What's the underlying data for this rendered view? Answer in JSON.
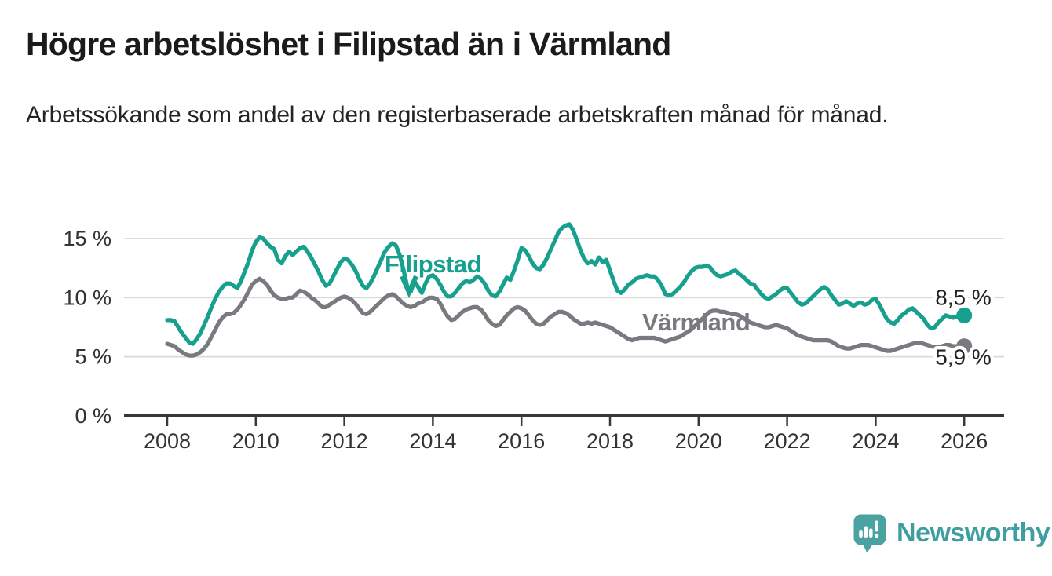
{
  "title": "Högre arbetslöshet i Filipstad än i Värmland",
  "subtitle": "Arbetssökande som andel av den registerbaserade arbetskraften månad för månad.",
  "branding": {
    "logo_text": "Newsworthy",
    "logo_color": "#3f9fa0",
    "logo_icon": "speech-bubble-bar-chart-icon"
  },
  "colors": {
    "filipstad": "#17a08e",
    "varmland": "#797980",
    "grid": "#d9d9d9",
    "axis": "#383838",
    "tick_text": "#333333",
    "value_label_text": "#222222",
    "background": "#ffffff"
  },
  "chart_data": {
    "type": "line",
    "title": "Högre arbetslöshet i Filipstad än i Värmland",
    "subtitle": "Arbetssökande som andel av den registerbaserade arbetskraften månad för månad.",
    "unit": "%",
    "frequency": "monthly",
    "x_start": "2008-01",
    "x_end": "2026-01",
    "x_tick_years": [
      2008,
      2010,
      2012,
      2014,
      2016,
      2018,
      2020,
      2022,
      2024,
      2026
    ],
    "y_ticks": [
      0,
      5,
      10,
      15
    ],
    "y_tick_labels": [
      "0 %",
      "5 %",
      "10 %",
      "15 %"
    ],
    "ylim": [
      0,
      17
    ],
    "grid": true,
    "legend": "inline-labels",
    "annotations": [
      {
        "text": "Filipstad",
        "series": "Filipstad",
        "arrow": true
      },
      {
        "text": "Värmland",
        "series": "Värmland",
        "arrow": false
      }
    ],
    "series": [
      {
        "name": "Filipstad",
        "color": "#17a08e",
        "end_value": 8.5,
        "end_label": "8,5 %",
        "values": [
          8.1,
          8.1,
          8.0,
          7.5,
          7.0,
          6.6,
          6.2,
          6.1,
          6.5,
          7.0,
          7.7,
          8.4,
          9.2,
          9.9,
          10.5,
          10.9,
          11.2,
          11.2,
          11.0,
          10.8,
          11.4,
          12.2,
          13.0,
          14.0,
          14.7,
          15.1,
          15.0,
          14.6,
          14.3,
          14.1,
          13.2,
          12.9,
          13.5,
          13.9,
          13.6,
          13.9,
          14.2,
          14.3,
          13.9,
          13.4,
          12.8,
          12.2,
          11.5,
          11.0,
          11.2,
          11.8,
          12.4,
          13.0,
          13.3,
          13.2,
          12.8,
          12.3,
          11.6,
          11.0,
          10.8,
          11.2,
          11.8,
          12.5,
          13.2,
          13.9,
          14.3,
          14.6,
          14.4,
          13.6,
          12.4,
          11.0,
          10.5,
          11.4,
          10.9,
          10.4,
          11.2,
          11.8,
          11.9,
          11.6,
          11.1,
          10.5,
          10.1,
          10.1,
          10.4,
          10.8,
          11.2,
          11.4,
          11.3,
          11.5,
          11.8,
          11.6,
          11.2,
          10.6,
          10.2,
          10.1,
          10.5,
          11.1,
          11.7,
          11.5,
          12.3,
          13.2,
          14.2,
          14.0,
          13.5,
          12.9,
          12.5,
          12.4,
          12.8,
          13.4,
          14.1,
          14.8,
          15.5,
          15.9,
          16.1,
          16.2,
          15.7,
          14.9,
          14.0,
          13.3,
          12.9,
          13.1,
          12.8,
          13.4,
          13.0,
          13.2,
          12.3,
          11.4,
          10.6,
          10.4,
          10.7,
          11.1,
          11.3,
          11.6,
          11.7,
          11.8,
          11.9,
          11.8,
          11.8,
          11.5,
          11.0,
          10.3,
          10.2,
          10.3,
          10.6,
          10.9,
          11.3,
          11.8,
          12.2,
          12.5,
          12.6,
          12.6,
          12.7,
          12.6,
          12.2,
          11.9,
          11.8,
          11.9,
          12.0,
          12.2,
          12.3,
          12.0,
          11.8,
          11.5,
          11.2,
          11.1,
          10.7,
          10.3,
          10.0,
          9.9,
          10.1,
          10.3,
          10.6,
          10.8,
          10.8,
          10.4,
          10.0,
          9.6,
          9.4,
          9.5,
          9.8,
          10.1,
          10.4,
          10.7,
          10.9,
          10.7,
          10.2,
          9.8,
          9.4,
          9.5,
          9.7,
          9.5,
          9.3,
          9.5,
          9.6,
          9.4,
          9.5,
          9.8,
          9.9,
          9.4,
          8.8,
          8.2,
          7.9,
          7.8,
          8.1,
          8.5,
          8.7,
          9.0,
          9.1,
          8.8,
          8.5,
          8.2,
          7.7,
          7.4,
          7.5,
          7.9,
          8.2,
          8.5,
          8.4,
          8.3,
          8.4,
          8.5,
          8.5
        ]
      },
      {
        "name": "Värmland",
        "color": "#797980",
        "end_value": 5.9,
        "end_label": "5,9 %",
        "values": [
          6.1,
          6.0,
          5.9,
          5.6,
          5.4,
          5.2,
          5.1,
          5.1,
          5.2,
          5.4,
          5.7,
          6.1,
          6.7,
          7.3,
          7.9,
          8.3,
          8.6,
          8.6,
          8.7,
          9.0,
          9.4,
          9.9,
          10.5,
          11.1,
          11.4,
          11.6,
          11.4,
          11.1,
          10.6,
          10.2,
          10.0,
          9.9,
          9.9,
          10.0,
          10.0,
          10.3,
          10.6,
          10.5,
          10.3,
          10.0,
          9.8,
          9.5,
          9.2,
          9.2,
          9.4,
          9.6,
          9.8,
          10.0,
          10.1,
          10.0,
          9.8,
          9.5,
          9.1,
          8.7,
          8.6,
          8.8,
          9.1,
          9.4,
          9.7,
          10.0,
          10.2,
          10.3,
          10.1,
          9.8,
          9.5,
          9.3,
          9.2,
          9.3,
          9.5,
          9.6,
          9.8,
          10.0,
          10.0,
          9.9,
          9.5,
          8.9,
          8.4,
          8.1,
          8.2,
          8.5,
          8.8,
          9.0,
          9.1,
          9.2,
          9.2,
          9.0,
          8.6,
          8.1,
          7.8,
          7.6,
          7.7,
          8.1,
          8.5,
          8.8,
          9.1,
          9.2,
          9.1,
          8.9,
          8.5,
          8.1,
          7.8,
          7.7,
          7.8,
          8.1,
          8.4,
          8.6,
          8.8,
          8.8,
          8.7,
          8.5,
          8.2,
          8.0,
          7.8,
          7.8,
          7.9,
          7.8,
          7.9,
          7.8,
          7.7,
          7.6,
          7.5,
          7.3,
          7.1,
          6.9,
          6.7,
          6.5,
          6.4,
          6.5,
          6.6,
          6.6,
          6.6,
          6.6,
          6.6,
          6.5,
          6.4,
          6.3,
          6.4,
          6.5,
          6.6,
          6.7,
          6.9,
          7.1,
          7.3,
          7.6,
          7.9,
          8.2,
          8.5,
          8.8,
          8.9,
          8.9,
          8.8,
          8.8,
          8.7,
          8.6,
          8.6,
          8.5,
          8.3,
          8.1,
          7.9,
          7.8,
          7.7,
          7.6,
          7.5,
          7.5,
          7.6,
          7.7,
          7.6,
          7.5,
          7.4,
          7.2,
          7.0,
          6.8,
          6.7,
          6.6,
          6.5,
          6.4,
          6.4,
          6.4,
          6.4,
          6.4,
          6.3,
          6.1,
          5.9,
          5.8,
          5.7,
          5.7,
          5.8,
          5.9,
          6.0,
          6.0,
          6.0,
          5.9,
          5.8,
          5.7,
          5.6,
          5.5,
          5.5,
          5.6,
          5.7,
          5.8,
          5.9,
          6.0,
          6.1,
          6.2,
          6.2,
          6.1,
          6.0,
          5.9,
          5.8,
          5.8,
          5.9,
          6.0,
          6.0,
          5.9,
          5.9,
          5.9,
          5.9
        ]
      }
    ]
  }
}
